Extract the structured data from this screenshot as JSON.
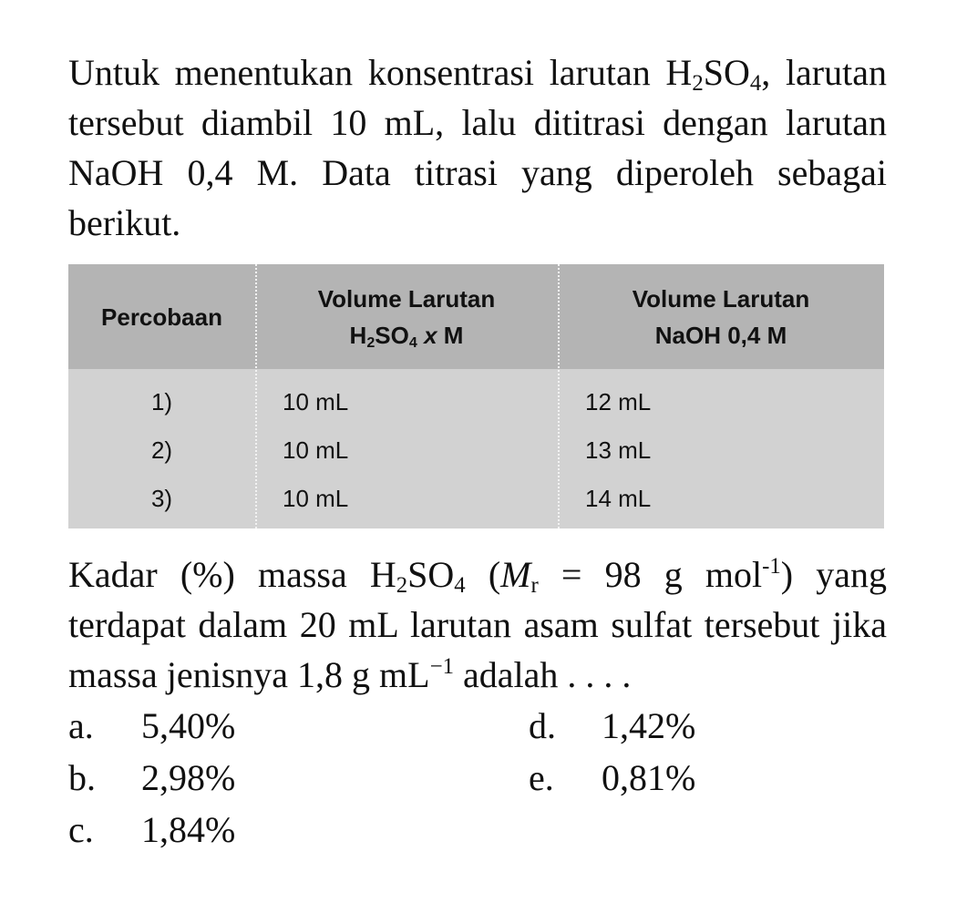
{
  "intro": [
    "Untuk menentukan konsentrasi larutan H",
    {
      "sub": "2"
    },
    "SO",
    {
      "sub": "4"
    },
    ", larutan tersebut diambil 10 mL, lalu dititrasi dengan larutan NaOH 0,4 M. Data titrasi yang diperoleh sebagai berikut."
  ],
  "table": {
    "header": [
      [
        [
          "Percobaan"
        ]
      ],
      [
        [
          "Volume Larutan"
        ],
        [
          "H",
          {
            "sub": "2"
          },
          "SO",
          {
            "sub": "4"
          },
          " ",
          {
            "i": "x"
          },
          " M"
        ]
      ],
      [
        [
          "Volume Larutan"
        ],
        [
          "NaOH 0,4 M"
        ]
      ]
    ],
    "rows": [
      [
        "1)",
        "10 mL",
        "12 mL"
      ],
      [
        "2)",
        "10 mL",
        "13 mL"
      ],
      [
        "3)",
        "10 mL",
        "14 mL"
      ]
    ]
  },
  "question": [
    "Kadar (%) massa H",
    {
      "sub": "2"
    },
    "SO",
    {
      "sub": "4"
    },
    " (",
    {
      "i": "M"
    },
    {
      "sub": "r"
    },
    " = 98 g mol",
    {
      "sup": "-1"
    },
    ") yang terdapat dalam 20 mL larutan asam sulfat tersebut jika massa jenisnya 1,8 g mL",
    {
      "sup": "−1"
    },
    " adalah . . . ."
  ],
  "options": [
    {
      "letter": "a.",
      "text": "5,40%"
    },
    {
      "letter": "b.",
      "text": "2,98%"
    },
    {
      "letter": "c.",
      "text": "1,84%"
    },
    {
      "letter": "d.",
      "text": "1,42%"
    },
    {
      "letter": "e.",
      "text": "0,81%"
    }
  ]
}
